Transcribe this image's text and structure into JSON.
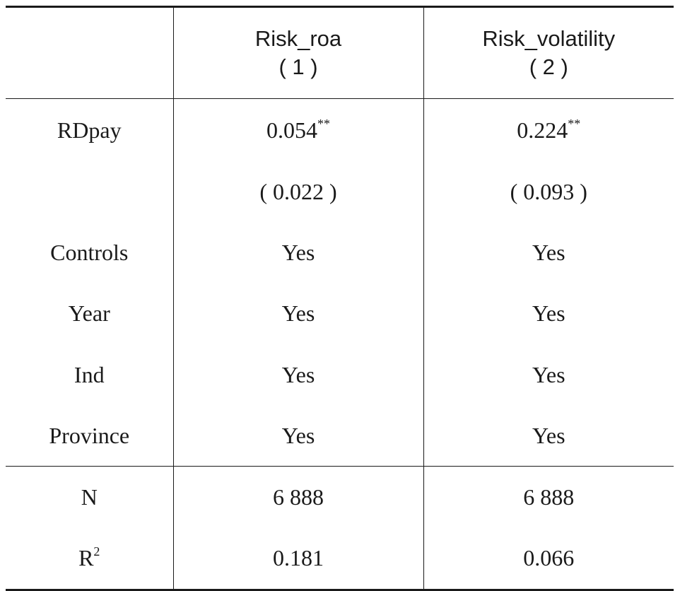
{
  "table": {
    "columns": [
      {
        "name": "Risk_roa",
        "number": "( 1 )"
      },
      {
        "name": "Risk_volatility",
        "number": "( 2 )"
      }
    ],
    "rows": [
      {
        "label": "RDpay",
        "values": [
          "0.054",
          "0.224"
        ],
        "stars": [
          "**",
          "**"
        ]
      },
      {
        "label": "",
        "values": [
          "( 0.022 )",
          "( 0.093 )"
        ]
      },
      {
        "label": "Controls",
        "values": [
          "Yes",
          "Yes"
        ]
      },
      {
        "label": "Year",
        "values": [
          "Yes",
          "Yes"
        ]
      },
      {
        "label": "Ind",
        "values": [
          "Yes",
          "Yes"
        ]
      },
      {
        "label": "Province",
        "values": [
          "Yes",
          "Yes"
        ]
      }
    ],
    "stats": [
      {
        "label": "N",
        "values": [
          "6 888",
          "6 888"
        ]
      },
      {
        "label": "R",
        "label_sup": "2",
        "values": [
          "0.181",
          "0.066"
        ]
      }
    ]
  }
}
